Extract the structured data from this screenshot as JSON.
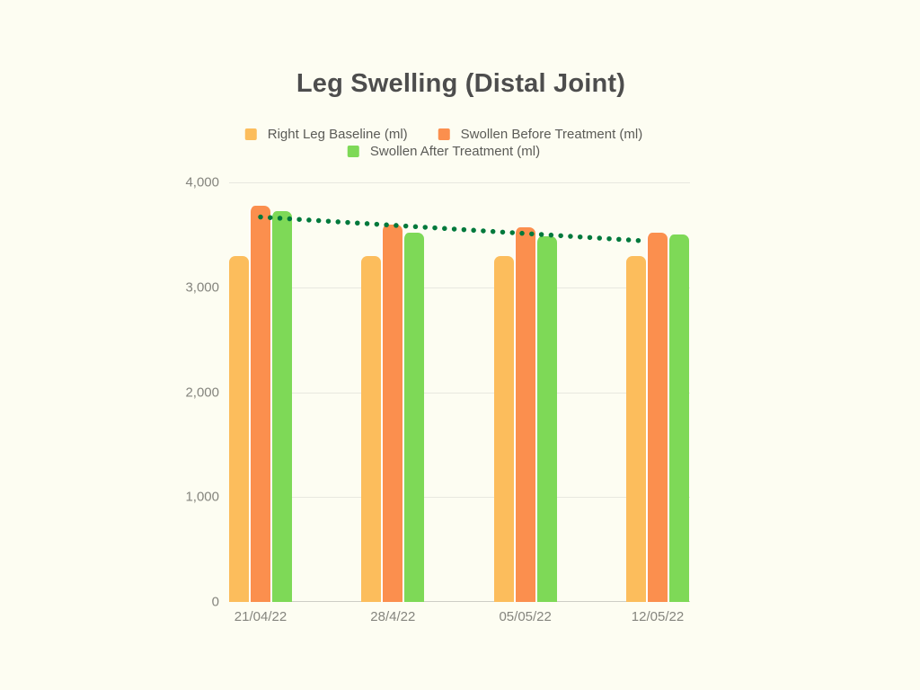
{
  "title": "Leg Swelling (Distal Joint)",
  "colors": {
    "background": "#FDFDF2",
    "title_text": "#4D4D4D",
    "legend_text": "#5B5B57",
    "tick_text": "#85857E",
    "gridline": "#E8E8E0",
    "axis_line": "#CDCDC6",
    "bar_gap": "#FFFFFF"
  },
  "chart_data": {
    "type": "bar",
    "title": "Leg Swelling (Distal Joint)",
    "categories": [
      "21/04/22",
      "28/4/22",
      "05/05/22",
      "12/05/22"
    ],
    "series": [
      {
        "name": "Right Leg Baseline (ml)",
        "color": "#FCBD5C",
        "values": [
          3300,
          3300,
          3300,
          3300
        ]
      },
      {
        "name": "Swollen Before Treatment (ml)",
        "color": "#FB8F4E",
        "values": [
          3780,
          3600,
          3570,
          3520
        ]
      },
      {
        "name": "Swollen After Treatment (ml)",
        "color": "#7ED957",
        "values": [
          3730,
          3520,
          3490,
          3500
        ]
      }
    ],
    "trendline": {
      "style": "dotted",
      "color": "#00793C",
      "start_value": 3670,
      "end_value": 3440
    },
    "xlabel": "",
    "ylabel": "",
    "ylim": [
      0,
      4000
    ],
    "yticks": [
      0,
      1000,
      2000,
      3000,
      4000
    ],
    "ytick_labels": [
      "0",
      "1,000",
      "2,000",
      "3,000",
      "4,000"
    ],
    "grid": true,
    "legend_position": "top"
  }
}
